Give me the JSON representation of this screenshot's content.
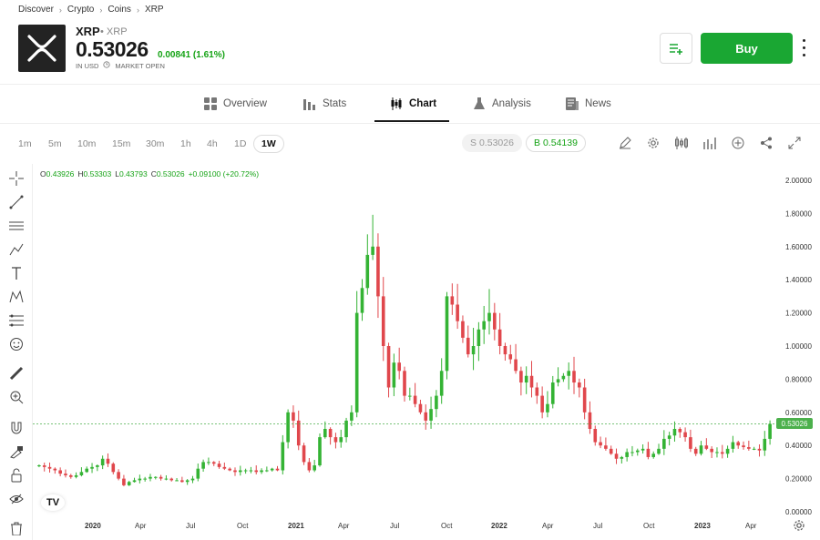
{
  "breadcrumb": [
    "Discover",
    "Crypto",
    "Coins",
    "XRP"
  ],
  "instrument": {
    "symbol": "XRP",
    "name": "XRP",
    "price": "0.53026",
    "change": "0.00841 (1.61%)",
    "currency": "IN USD",
    "market_status": "MARKET OPEN"
  },
  "actions": {
    "buy_label": "Buy"
  },
  "tabs": [
    {
      "label": "Overview",
      "icon": "overview-grid-icon"
    },
    {
      "label": "Stats",
      "icon": "stats-bars-icon"
    },
    {
      "label": "Chart",
      "icon": "candlestick-icon",
      "active": true
    },
    {
      "label": "Analysis",
      "icon": "flask-icon"
    },
    {
      "label": "News",
      "icon": "newspaper-icon"
    }
  ],
  "timeframes": [
    "1m",
    "5m",
    "10m",
    "15m",
    "30m",
    "1h",
    "4h",
    "1D",
    "1W"
  ],
  "active_timeframe": "1W",
  "sell_price": "S 0.53026",
  "buy_price": "B 0.54139",
  "ohlc": {
    "o_label": "O",
    "o": "0.43926",
    "h_label": "H",
    "h": "0.53303",
    "l_label": "L",
    "l": "0.43793",
    "c_label": "C",
    "c": "0.53026",
    "chg": "+0.09100 (+20.72%)"
  },
  "current_price_tag": "0.53026",
  "colors": {
    "up": "#34b334",
    "down": "#e0474c",
    "accent": "#1aa733"
  },
  "chart_data": {
    "type": "candlestick",
    "y_ticks": [
      "2.00000",
      "1.80000",
      "1.60000",
      "1.40000",
      "1.20000",
      "1.00000",
      "0.80000",
      "0.60000",
      "0.40000",
      "0.20000",
      "0.00000"
    ],
    "ylim": [
      0,
      2.0
    ],
    "x_ticks": [
      "2020",
      "Apr",
      "Jul",
      "Oct",
      "2021",
      "Apr",
      "Jul",
      "Oct",
      "2022",
      "Apr",
      "Jul",
      "Oct",
      "2023",
      "Apr"
    ],
    "close_series": [
      0.28,
      0.27,
      0.26,
      0.25,
      0.23,
      0.22,
      0.21,
      0.22,
      0.24,
      0.26,
      0.27,
      0.28,
      0.32,
      0.29,
      0.24,
      0.2,
      0.16,
      0.18,
      0.19,
      0.2,
      0.2,
      0.21,
      0.21,
      0.2,
      0.2,
      0.19,
      0.19,
      0.18,
      0.19,
      0.2,
      0.26,
      0.3,
      0.3,
      0.29,
      0.27,
      0.26,
      0.25,
      0.24,
      0.25,
      0.25,
      0.25,
      0.24,
      0.25,
      0.25,
      0.26,
      0.25,
      0.42,
      0.6,
      0.55,
      0.4,
      0.3,
      0.25,
      0.28,
      0.45,
      0.5,
      0.45,
      0.42,
      0.45,
      0.55,
      0.6,
      1.2,
      1.35,
      1.55,
      1.6,
      1.3,
      1.0,
      0.75,
      0.9,
      0.85,
      0.7,
      0.7,
      0.65,
      0.6,
      0.55,
      0.62,
      0.7,
      0.85,
      1.3,
      1.25,
      1.15,
      1.05,
      0.95,
      1.0,
      1.1,
      1.15,
      1.2,
      1.1,
      1.0,
      0.95,
      0.92,
      0.85,
      0.78,
      0.82,
      0.75,
      0.7,
      0.6,
      0.65,
      0.78,
      0.8,
      0.82,
      0.85,
      0.78,
      0.75,
      0.6,
      0.5,
      0.42,
      0.4,
      0.38,
      0.35,
      0.32,
      0.33,
      0.36,
      0.36,
      0.37,
      0.38,
      0.33,
      0.35,
      0.38,
      0.44,
      0.46,
      0.5,
      0.48,
      0.45,
      0.38,
      0.35,
      0.4,
      0.38,
      0.36,
      0.36,
      0.35,
      0.38,
      0.42,
      0.4,
      0.39,
      0.38,
      0.38,
      0.37,
      0.44,
      0.53
    ],
    "overall_high": 1.96
  }
}
